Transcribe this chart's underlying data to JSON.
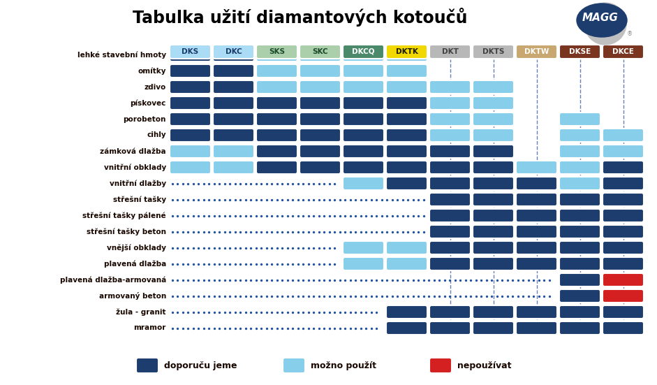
{
  "title": "Tabulka užití diamantových kotoučů",
  "columns": [
    "DKS",
    "DKC",
    "SKS",
    "SKC",
    "DKCQ",
    "DKTK",
    "DKT",
    "DKTS",
    "DKTW",
    "DKSE",
    "DKCE"
  ],
  "col_header_bg": [
    "#aadcf5",
    "#aadcf5",
    "#aacfaa",
    "#aacfaa",
    "#4a8a6a",
    "#f0d800",
    "#b8b8b8",
    "#b8b8b8",
    "#c8a870",
    "#7a3520",
    "#7a3520"
  ],
  "col_header_tc": [
    "#1a3a6a",
    "#1a3a6a",
    "#1a4a2a",
    "#1a4a2a",
    "#ffffff",
    "#1a1a00",
    "#404040",
    "#404040",
    "#ffffff",
    "#ffffff",
    "#ffffff"
  ],
  "rows": [
    "lehké stavební hmoty",
    "omítky",
    "zdivo",
    "pískovec",
    "porobeton",
    "cihly",
    "zámková dlažba",
    "vnitřní obklady",
    "vnitřní dlažby",
    "střešní tašky",
    "střešní tašky pálené",
    "střešní tašky beton",
    "vnější obklady",
    "plavená dlažba",
    "plavená dlažba-armovaná",
    "armovaný beton",
    "žula - granit",
    "mramor"
  ],
  "grid": [
    [
      "D",
      "D",
      "L",
      "L",
      "L",
      "L",
      null,
      null,
      null,
      null,
      null
    ],
    [
      "D",
      "D",
      "L",
      "L",
      "L",
      "L",
      null,
      null,
      null,
      null,
      null
    ],
    [
      "D",
      "D",
      "L",
      "L",
      "L",
      "L",
      "L",
      "L",
      null,
      null,
      null
    ],
    [
      "D",
      "D",
      "D",
      "D",
      "D",
      "D",
      "L",
      "L",
      null,
      null,
      null
    ],
    [
      "D",
      "D",
      "D",
      "D",
      "D",
      "D",
      "L",
      "L",
      null,
      "L",
      null
    ],
    [
      "D",
      "D",
      "D",
      "D",
      "D",
      "D",
      "L",
      "L",
      null,
      "L",
      "L"
    ],
    [
      "L",
      "L",
      "D",
      "D",
      "D",
      "D",
      "D",
      "D",
      null,
      "L",
      "L"
    ],
    [
      "L",
      "L",
      "D",
      "D",
      "D",
      "D",
      "D",
      "D",
      "L",
      "L",
      "D"
    ],
    [
      null,
      null,
      null,
      null,
      "L",
      "D",
      "D",
      "D",
      "D",
      "L",
      "D"
    ],
    [
      null,
      null,
      null,
      null,
      null,
      null,
      "D",
      "D",
      "D",
      "D",
      "D"
    ],
    [
      null,
      null,
      null,
      null,
      null,
      null,
      "D",
      "D",
      "D",
      "D",
      "D"
    ],
    [
      null,
      null,
      null,
      null,
      null,
      null,
      "D",
      "D",
      "D",
      "D",
      "D"
    ],
    [
      null,
      null,
      null,
      null,
      "L",
      "L",
      "D",
      "D",
      "D",
      "D",
      "D"
    ],
    [
      null,
      null,
      null,
      null,
      "L",
      "L",
      "D",
      "D",
      "D",
      "D",
      "D"
    ],
    [
      null,
      null,
      null,
      null,
      null,
      null,
      null,
      null,
      null,
      "D",
      "R"
    ],
    [
      null,
      null,
      null,
      null,
      null,
      null,
      null,
      null,
      null,
      "D",
      "R"
    ],
    [
      null,
      null,
      null,
      null,
      null,
      "D",
      "D",
      "D",
      "D",
      "D",
      "D"
    ],
    [
      null,
      null,
      null,
      null,
      null,
      "D",
      "D",
      "D",
      "D",
      "D",
      "D"
    ]
  ],
  "dark_blue": "#1c3d6e",
  "light_blue": "#87ceeb",
  "red": "#d42020",
  "legend_labels": [
    "doporuču jeme",
    "možno použít",
    "nepoužívat"
  ],
  "legend_colors": [
    "#1c3d6e",
    "#87ceeb",
    "#d42020"
  ],
  "dashed_cols": [
    6,
    7,
    8,
    9,
    10
  ],
  "dot_start_rows": [
    8,
    9,
    10,
    11,
    12,
    13,
    14,
    15,
    16,
    17
  ]
}
